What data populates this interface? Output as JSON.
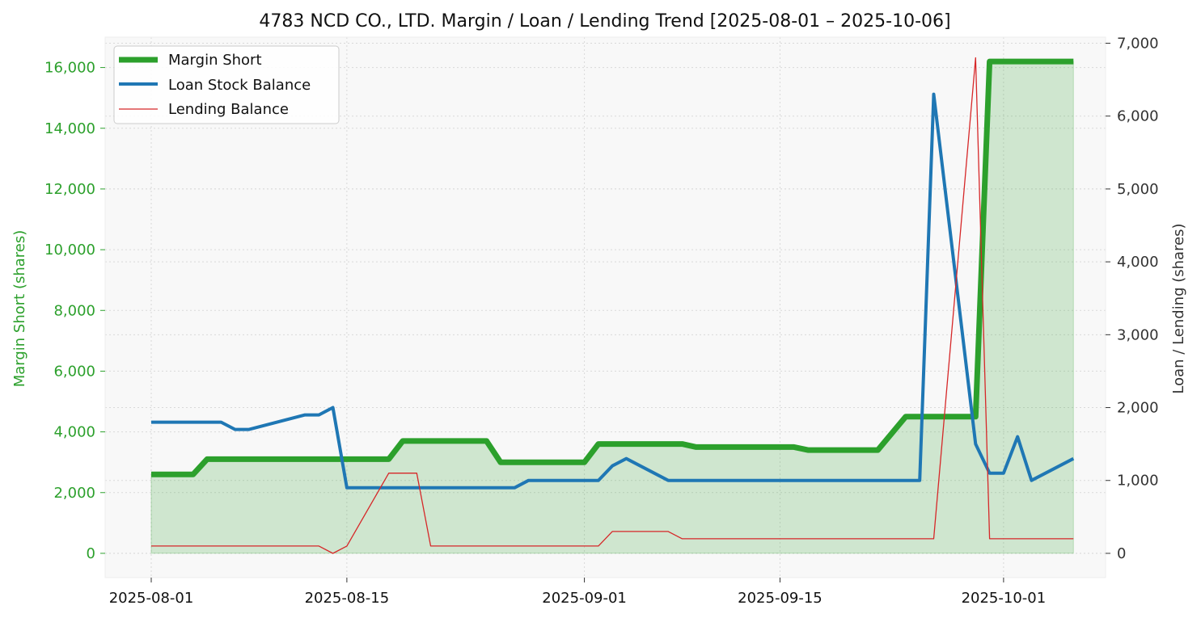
{
  "chart_data": {
    "type": "line",
    "title": "4783 NCD CO., LTD. Margin / Loan / Lending Trend [2025-08-01 – 2025-10-06]",
    "ylabel_left": "Margin Short (shares)",
    "ylabel_right": "Loan / Lending (shares)",
    "xlabel": "",
    "x_ticks": [
      "2025-08-01",
      "2025-08-15",
      "2025-09-01",
      "2025-09-15",
      "2025-10-01"
    ],
    "ylim_left": [
      -800,
      17000
    ],
    "ylim_right": [
      -333,
      7083
    ],
    "yticks_left": [
      0,
      2000,
      4000,
      6000,
      8000,
      10000,
      12000,
      14000,
      16000
    ],
    "yticks_left_labels": [
      "0",
      "2,000",
      "4,000",
      "6,000",
      "8,000",
      "10,000",
      "12,000",
      "14,000",
      "16,000"
    ],
    "yticks_right": [
      0,
      1000,
      2000,
      3000,
      4000,
      5000,
      6000,
      7000
    ],
    "yticks_right_labels": [
      "0",
      "1,000",
      "2,000",
      "3,000",
      "4,000",
      "5,000",
      "6,000",
      "7,000"
    ],
    "grid": true,
    "legend_position": "top-left",
    "colors": {
      "margin": "#2ca02c",
      "loan": "#1f77b4",
      "lending": "#d62728",
      "fill": "#2ca02c",
      "left_axis": "#2ca02c",
      "right_axis": "#333333",
      "plot_bg": "#f8f8f8"
    },
    "series": [
      {
        "name": "Margin Short",
        "axis": "left",
        "points": [
          [
            "2025-08-01",
            2600
          ],
          [
            "2025-08-04",
            2600
          ],
          [
            "2025-08-05",
            3100
          ],
          [
            "2025-08-14",
            3100
          ],
          [
            "2025-08-18",
            3100
          ],
          [
            "2025-08-19",
            3700
          ],
          [
            "2025-08-25",
            3700
          ],
          [
            "2025-08-26",
            3000
          ],
          [
            "2025-09-01",
            3000
          ],
          [
            "2025-09-02",
            3600
          ],
          [
            "2025-09-08",
            3600
          ],
          [
            "2025-09-09",
            3500
          ],
          [
            "2025-09-16",
            3500
          ],
          [
            "2025-09-17",
            3400
          ],
          [
            "2025-09-22",
            3400
          ],
          [
            "2025-09-24",
            4500
          ],
          [
            "2025-09-29",
            4500
          ],
          [
            "2025-09-30",
            16200
          ],
          [
            "2025-10-06",
            16200
          ]
        ]
      },
      {
        "name": "Loan Stock Balance",
        "axis": "right",
        "points": [
          [
            "2025-08-01",
            1800
          ],
          [
            "2025-08-06",
            1800
          ],
          [
            "2025-08-07",
            1700
          ],
          [
            "2025-08-08",
            1700
          ],
          [
            "2025-08-12",
            1900
          ],
          [
            "2025-08-13",
            1900
          ],
          [
            "2025-08-14",
            2000
          ],
          [
            "2025-08-15",
            900
          ],
          [
            "2025-08-27",
            900
          ],
          [
            "2025-08-28",
            1000
          ],
          [
            "2025-09-02",
            1000
          ],
          [
            "2025-09-03",
            1200
          ],
          [
            "2025-09-04",
            1300
          ],
          [
            "2025-09-07",
            1000
          ],
          [
            "2025-09-25",
            1000
          ],
          [
            "2025-09-26",
            6300
          ],
          [
            "2025-09-29",
            1500
          ],
          [
            "2025-09-30",
            1100
          ],
          [
            "2025-10-01",
            1100
          ],
          [
            "2025-10-02",
            1600
          ],
          [
            "2025-10-03",
            1000
          ],
          [
            "2025-10-06",
            1300
          ]
        ]
      },
      {
        "name": "Lending Balance",
        "axis": "right",
        "points": [
          [
            "2025-08-01",
            100
          ],
          [
            "2025-08-13",
            100
          ],
          [
            "2025-08-14",
            0
          ],
          [
            "2025-08-15",
            100
          ],
          [
            "2025-08-18",
            1100
          ],
          [
            "2025-08-20",
            1100
          ],
          [
            "2025-08-21",
            100
          ],
          [
            "2025-09-02",
            100
          ],
          [
            "2025-09-03",
            300
          ],
          [
            "2025-09-07",
            300
          ],
          [
            "2025-09-08",
            200
          ],
          [
            "2025-09-26",
            200
          ],
          [
            "2025-09-29",
            6800
          ],
          [
            "2025-09-30",
            200
          ],
          [
            "2025-10-06",
            200
          ]
        ]
      }
    ]
  }
}
